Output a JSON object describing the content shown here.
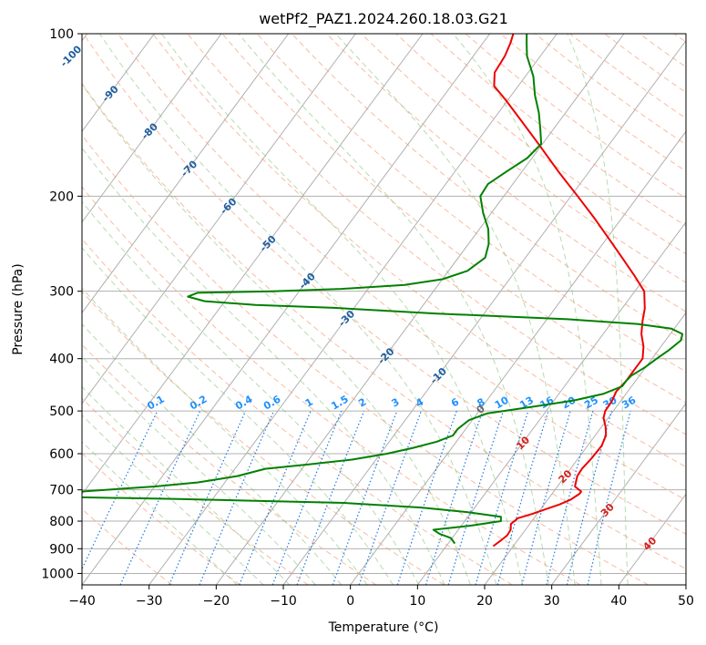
{
  "chart_data": {
    "type": "line",
    "title": "wetPf2_PAZ1.2024.260.18.03.G21",
    "xlabel": "Temperature (°C)",
    "ylabel": "Pressure (hPa)",
    "xlim": [
      -40,
      50
    ],
    "ylim": [
      1050,
      100
    ],
    "y_scale": "log",
    "grid": true,
    "x_ticks": [
      -40,
      -30,
      -20,
      -10,
      0,
      10,
      20,
      30,
      40,
      50
    ],
    "y_ticks": [
      100,
      200,
      300,
      400,
      500,
      600,
      700,
      800,
      900,
      1000
    ],
    "isotherm_labels": [
      -100,
      -90,
      -80,
      -70,
      -60,
      -50,
      -40,
      -30,
      -20,
      -10,
      0,
      10,
      20,
      30,
      40
    ],
    "mixing_ratio_labels": [
      "0.1",
      "0.2",
      "0.4",
      "0.6",
      "1",
      "1.5",
      "2",
      "3",
      "4",
      "6",
      "8",
      "10",
      "13",
      "16",
      "20",
      "25",
      "30",
      "36"
    ],
    "series": [
      {
        "role": "temperature",
        "color": "#ee0000",
        "points": [
          [
            890,
            17.0
          ],
          [
            870,
            17.5
          ],
          [
            850,
            17.9
          ],
          [
            830,
            17.8
          ],
          [
            810,
            17.2
          ],
          [
            790,
            17.6
          ],
          [
            775,
            19.3
          ],
          [
            760,
            20.8
          ],
          [
            745,
            22.3
          ],
          [
            730,
            23.4
          ],
          [
            712,
            24.1
          ],
          [
            705,
            24.1
          ],
          [
            690,
            22.6
          ],
          [
            660,
            21.8
          ],
          [
            640,
            21.7
          ],
          [
            610,
            22.0
          ],
          [
            580,
            22.1
          ],
          [
            555,
            21.6
          ],
          [
            535,
            20.6
          ],
          [
            515,
            19.3
          ],
          [
            500,
            18.8
          ],
          [
            480,
            18.7
          ],
          [
            460,
            18.3
          ],
          [
            440,
            18.6
          ],
          [
            420,
            18.6
          ],
          [
            400,
            18.6
          ],
          [
            380,
            17.4
          ],
          [
            360,
            15.7
          ],
          [
            340,
            14.4
          ],
          [
            323,
            13.4
          ],
          [
            300,
            11.4
          ],
          [
            280,
            8.1
          ],
          [
            260,
            4.4
          ],
          [
            240,
            0.4
          ],
          [
            220,
            -4.0
          ],
          [
            200,
            -9.0
          ],
          [
            180,
            -14.6
          ],
          [
            160,
            -20.6
          ],
          [
            145,
            -25.7
          ],
          [
            133,
            -30.2
          ],
          [
            125,
            -33.6
          ],
          [
            118,
            -35.0
          ],
          [
            110,
            -35.3
          ],
          [
            104,
            -35.9
          ],
          [
            100,
            -36.5
          ]
        ]
      },
      {
        "role": "dewpoint",
        "color": "#008000",
        "points": [
          [
            880,
            11.0
          ],
          [
            870,
            10.4
          ],
          [
            860,
            9.8
          ],
          [
            845,
            7.7
          ],
          [
            830,
            6.3
          ],
          [
            815,
            11.6
          ],
          [
            800,
            15.4
          ],
          [
            785,
            14.9
          ],
          [
            770,
            9.5
          ],
          [
            755,
            2.0
          ],
          [
            740,
            -10.0
          ],
          [
            728,
            -35.0
          ],
          [
            722,
            -52.0
          ],
          [
            712,
            -55.0
          ],
          [
            700,
            -47.0
          ],
          [
            690,
            -40.0
          ],
          [
            678,
            -34.0
          ],
          [
            660,
            -28.8
          ],
          [
            640,
            -25.5
          ],
          [
            628,
            -19.5
          ],
          [
            615,
            -13.5
          ],
          [
            600,
            -9.0
          ],
          [
            585,
            -5.7
          ],
          [
            570,
            -2.9
          ],
          [
            555,
            -1.2
          ],
          [
            540,
            -1.2
          ],
          [
            520,
            -0.5
          ],
          [
            505,
            1.5
          ],
          [
            490,
            8.0
          ],
          [
            478,
            13.0
          ],
          [
            465,
            16.6
          ],
          [
            450,
            18.6
          ],
          [
            440,
            18.6
          ],
          [
            430,
            18.8
          ],
          [
            415,
            19.9
          ],
          [
            400,
            20.7
          ],
          [
            385,
            21.6
          ],
          [
            370,
            22.3
          ],
          [
            360,
            21.8
          ],
          [
            352,
            19.6
          ],
          [
            345,
            14.0
          ],
          [
            338,
            3.0
          ],
          [
            330,
            -17.0
          ],
          [
            322,
            -33.0
          ],
          [
            318,
            -45.0
          ],
          [
            313,
            -53.0
          ],
          [
            307,
            -56.0
          ],
          [
            302,
            -55.0
          ],
          [
            300,
            -44.0
          ],
          [
            297,
            -34.0
          ],
          [
            292,
            -25.0
          ],
          [
            285,
            -20.0
          ],
          [
            275,
            -17.2
          ],
          [
            260,
            -16.0
          ],
          [
            245,
            -17.0
          ],
          [
            230,
            -18.7
          ],
          [
            215,
            -21.2
          ],
          [
            200,
            -23.5
          ],
          [
            190,
            -23.7
          ],
          [
            180,
            -22.3
          ],
          [
            170,
            -20.7
          ],
          [
            160,
            -20.2
          ],
          [
            150,
            -22.0
          ],
          [
            140,
            -24.0
          ],
          [
            130,
            -26.5
          ],
          [
            120,
            -28.8
          ],
          [
            110,
            -32.0
          ],
          [
            104,
            -33.5
          ],
          [
            100,
            -34.5
          ]
        ]
      }
    ]
  }
}
